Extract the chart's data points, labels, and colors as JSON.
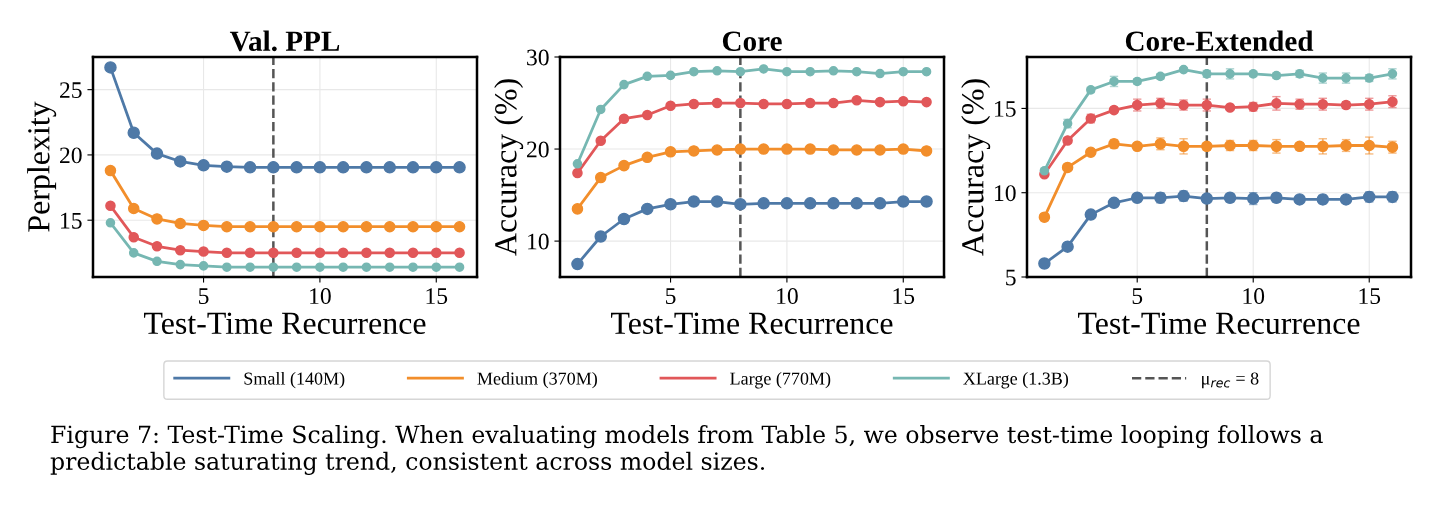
{
  "chart_data": [
    {
      "type": "line",
      "title": "Val. PPL",
      "xlabel": "Test-Time Recurrence",
      "ylabel": "Perplexity",
      "x": [
        1,
        2,
        3,
        4,
        5,
        6,
        7,
        8,
        9,
        10,
        11,
        12,
        13,
        14,
        15,
        16
      ],
      "xlim": [
        0.25,
        16.75
      ],
      "xticks": [
        5,
        10,
        15
      ],
      "ylim": [
        10.65,
        27.5
      ],
      "yticks": [
        15,
        20,
        25
      ],
      "grid": true,
      "marker": "circle",
      "line_style": "solid",
      "legend": "bottom",
      "series": [
        {
          "name": "Small (140M)",
          "color": "#4e79a7",
          "values": [
            26.7,
            21.7,
            20.1,
            19.5,
            19.2,
            19.1,
            19.05,
            19.05,
            19.05,
            19.05,
            19.05,
            19.05,
            19.05,
            19.05,
            19.05,
            19.05
          ]
        },
        {
          "name": "Medium (370M)",
          "color": "#f28e2b",
          "values": [
            18.8,
            15.9,
            15.1,
            14.75,
            14.6,
            14.5,
            14.5,
            14.5,
            14.5,
            14.5,
            14.5,
            14.5,
            14.5,
            14.5,
            14.5,
            14.5
          ]
        },
        {
          "name": "Large (770M)",
          "color": "#e15759",
          "values": [
            16.1,
            13.7,
            13.0,
            12.7,
            12.6,
            12.5,
            12.5,
            12.5,
            12.5,
            12.5,
            12.5,
            12.5,
            12.5,
            12.5,
            12.5,
            12.5
          ]
        },
        {
          "name": "XLarge (1.3B)",
          "color": "#76b7b2",
          "values": [
            14.8,
            12.5,
            11.85,
            11.6,
            11.5,
            11.4,
            11.4,
            11.4,
            11.4,
            11.4,
            11.4,
            11.4,
            11.4,
            11.4,
            11.4,
            11.4
          ]
        }
      ],
      "ref_lines": [
        {
          "axis": "x",
          "value": 8,
          "label": "μ$_{rec}$ = 8",
          "color": "#555555",
          "line_style": "dashed"
        }
      ],
      "annotations": [
        "Figure 7: Test-Time Scaling. When evaluating models from Table 5, we observe test-time looping follows a predictable saturating trend, consistent across model sizes."
      ]
    },
    {
      "type": "line",
      "title": "Core",
      "xlabel": "Test-Time Recurrence",
      "ylabel": "Accuracy (%)",
      "x": [
        1,
        2,
        3,
        4,
        5,
        6,
        7,
        8,
        9,
        10,
        11,
        12,
        13,
        14,
        15,
        16
      ],
      "xlim": [
        0.25,
        16.75
      ],
      "xticks": [
        5,
        10,
        15
      ],
      "ylim": [
        6.1,
        30
      ],
      "yticks": [
        10,
        20,
        30
      ],
      "grid": true,
      "marker": "circle",
      "line_style": "solid",
      "series": [
        {
          "color": "#4e79a7",
          "values": [
            7.5,
            10.5,
            12.4,
            13.5,
            14.0,
            14.3,
            14.3,
            14.0,
            14.1,
            14.1,
            14.1,
            14.1,
            14.1,
            14.1,
            14.3,
            14.3
          ]
        },
        {
          "color": "#f28e2b",
          "values": [
            13.5,
            16.9,
            18.2,
            19.1,
            19.7,
            19.8,
            19.9,
            20.0,
            20.0,
            20.0,
            20.0,
            19.9,
            19.9,
            19.9,
            20.0,
            19.8
          ]
        },
        {
          "color": "#e15759",
          "values": [
            17.4,
            20.9,
            23.3,
            23.7,
            24.7,
            24.9,
            25.0,
            25.0,
            24.9,
            24.9,
            25.0,
            25.0,
            25.3,
            25.1,
            25.2,
            25.1
          ]
        },
        {
          "color": "#76b7b2",
          "values": [
            18.4,
            24.3,
            27.0,
            27.9,
            28.0,
            28.4,
            28.5,
            28.4,
            28.7,
            28.4,
            28.4,
            28.5,
            28.4,
            28.2,
            28.4,
            28.4
          ]
        }
      ],
      "ref_lines": [
        {
          "axis": "x",
          "value": 8,
          "color": "#555555",
          "line_style": "dashed"
        }
      ]
    },
    {
      "type": "line",
      "title": "Core-Extended",
      "xlabel": "Test-Time Recurrence",
      "ylabel": "Accuracy (%)",
      "x": [
        1,
        2,
        3,
        4,
        5,
        6,
        7,
        8,
        9,
        10,
        11,
        12,
        13,
        14,
        15,
        16
      ],
      "xlim": [
        0.25,
        16.8
      ],
      "xticks": [
        5,
        10,
        15
      ],
      "ylim": [
        5,
        18.05
      ],
      "yticks": [
        5,
        10,
        15
      ],
      "grid": true,
      "marker": "circle",
      "line_style": "solid",
      "series": [
        {
          "color": "#4e79a7",
          "values": [
            5.8,
            6.8,
            8.7,
            9.4,
            9.7,
            9.7,
            9.8,
            9.65,
            9.7,
            9.65,
            9.7,
            9.6,
            9.6,
            9.6,
            9.75,
            9.75
          ],
          "errors": [
            0.2,
            0.1,
            0.1,
            0.1,
            0.15,
            0.3,
            0.3,
            0.2,
            0.25,
            0.35,
            0.25,
            0.15,
            0.25,
            0.2,
            0.3,
            0.3
          ]
        },
        {
          "color": "#f28e2b",
          "values": [
            8.55,
            11.5,
            12.4,
            12.9,
            12.75,
            12.9,
            12.75,
            12.75,
            12.8,
            12.8,
            12.75,
            12.75,
            12.75,
            12.8,
            12.8,
            12.7
          ],
          "errors": [
            0.2,
            0.1,
            0.15,
            0.25,
            0.15,
            0.35,
            0.45,
            0.2,
            0.3,
            0.3,
            0.4,
            0.2,
            0.45,
            0.35,
            0.5,
            0.35
          ]
        },
        {
          "color": "#e15759",
          "values": [
            11.1,
            13.1,
            14.4,
            14.9,
            15.2,
            15.3,
            15.2,
            15.2,
            15.05,
            15.1,
            15.3,
            15.25,
            15.25,
            15.2,
            15.25,
            15.4
          ],
          "errors": [
            0.1,
            0.15,
            0.25,
            0.15,
            0.35,
            0.3,
            0.3,
            0.35,
            0.1,
            0.25,
            0.4,
            0.3,
            0.35,
            0.2,
            0.35,
            0.35
          ]
        },
        {
          "color": "#76b7b2",
          "values": [
            11.3,
            14.1,
            16.1,
            16.6,
            16.6,
            16.9,
            17.3,
            17.05,
            17.05,
            17.05,
            16.95,
            17.05,
            16.8,
            16.8,
            16.8,
            17.05
          ],
          "errors": [
            0.15,
            0.25,
            0.15,
            0.3,
            0.15,
            0.15,
            0.1,
            0.2,
            0.3,
            0.15,
            0.15,
            0.2,
            0.3,
            0.3,
            0.2,
            0.3
          ]
        }
      ],
      "ref_lines": [
        {
          "axis": "x",
          "value": 8,
          "color": "#555555",
          "line_style": "dashed"
        }
      ]
    }
  ]
}
